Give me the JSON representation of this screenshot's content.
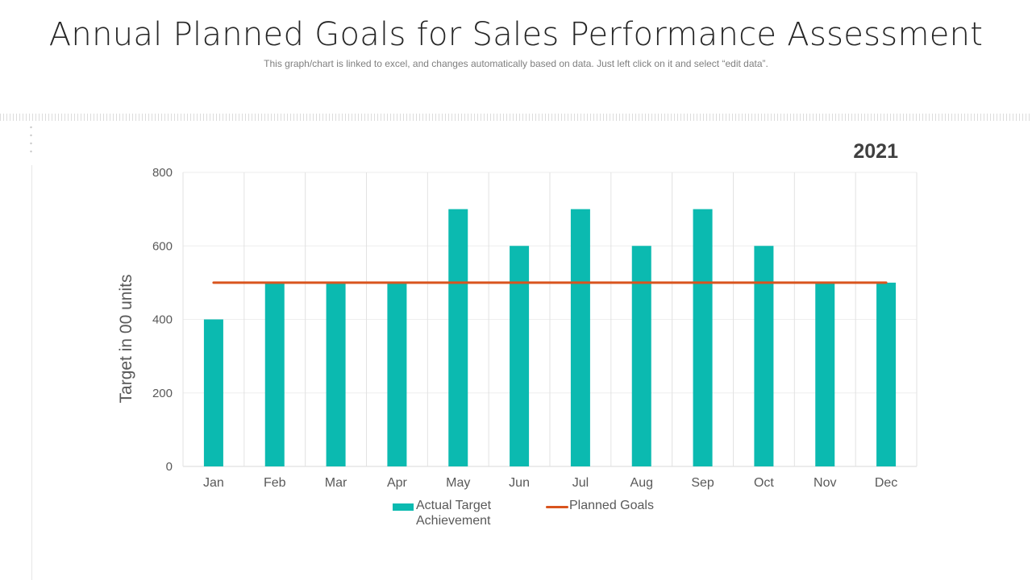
{
  "title": "Annual Planned Goals for Sales Performance Assessment",
  "subtitle": "This graph/chart is linked to excel, and changes automatically based on data. Just left click on it and select “edit data”.",
  "chart_data": {
    "type": "bar",
    "annotation": "2021",
    "categories": [
      "Jan",
      "Feb",
      "Mar",
      "Apr",
      "May",
      "Jun",
      "Jul",
      "Aug",
      "Sep",
      "Oct",
      "Nov",
      "Dec"
    ],
    "series": [
      {
        "name": "Actual Target Achievement",
        "type": "bar",
        "color": "#0bbab0",
        "values": [
          400,
          500,
          500,
          500,
          700,
          600,
          700,
          600,
          700,
          600,
          500,
          500
        ]
      },
      {
        "name": "Planned Goals",
        "type": "line",
        "color": "#d9541e",
        "values": [
          500,
          500,
          500,
          500,
          500,
          500,
          500,
          500,
          500,
          500,
          500,
          500
        ]
      }
    ],
    "ylabel": "Target in 00 units",
    "xlabel": "",
    "ylim": [
      0,
      800
    ],
    "yticks": [
      0,
      200,
      400,
      600,
      800
    ],
    "grid": true,
    "legend_position": "bottom"
  }
}
